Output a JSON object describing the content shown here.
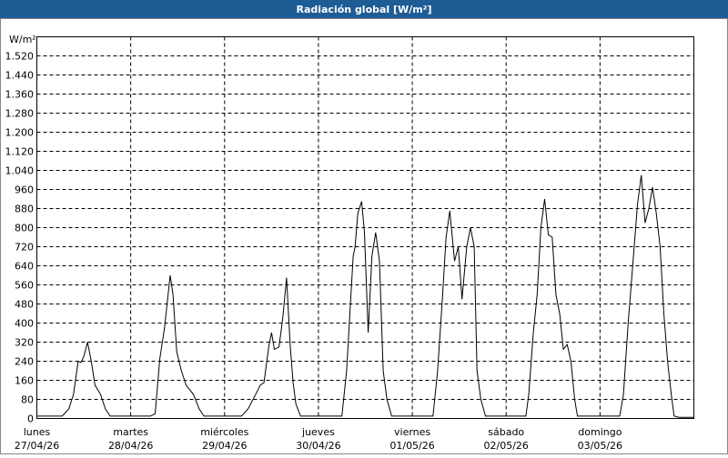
{
  "chart_data": {
    "type": "line",
    "title": "Radiación global [W/m²]",
    "y_unit": "W/m²",
    "xlim": [
      0,
      7
    ],
    "ylim": [
      0,
      1600
    ],
    "grid": true,
    "color": "#000000",
    "xticks": [
      {
        "value": 0,
        "label": "lunes",
        "date": "27/04/26"
      },
      {
        "value": 1,
        "label": "martes",
        "date": "28/04/26"
      },
      {
        "value": 2,
        "label": "miércoles",
        "date": "29/04/26"
      },
      {
        "value": 3,
        "label": "jueves",
        "date": "30/04/26"
      },
      {
        "value": 4,
        "label": "viernes",
        "date": "01/05/26"
      },
      {
        "value": 5,
        "label": "sábado",
        "date": "02/05/26"
      },
      {
        "value": 6,
        "label": "domingo",
        "date": "03/05/26"
      }
    ],
    "yticks": [
      0,
      80,
      160,
      240,
      320,
      400,
      480,
      560,
      640,
      720,
      800,
      880,
      960,
      {
        "value": 1040,
        "label": "1.040"
      },
      {
        "value": 1120,
        "label": "1.120"
      },
      {
        "value": 1200,
        "label": "1.200"
      },
      {
        "value": 1280,
        "label": "1.280"
      },
      {
        "value": 1360,
        "label": "1.360"
      },
      {
        "value": 1440,
        "label": "1.440"
      },
      {
        "value": 1520,
        "label": "1.520"
      }
    ],
    "x": [
      0,
      0.27,
      0.34,
      0.39,
      0.44,
      0.47,
      0.5,
      0.54,
      0.58,
      0.62,
      0.68,
      0.73,
      0.78,
      1.21,
      1.26,
      1.31,
      1.36,
      1.42,
      1.45,
      1.49,
      1.54,
      1.59,
      1.67,
      1.73,
      1.78,
      2.18,
      2.25,
      2.33,
      2.38,
      2.42,
      2.47,
      2.5,
      2.53,
      2.58,
      2.62,
      2.66,
      2.7,
      2.73,
      2.76,
      2.81,
      3.25,
      3.3,
      3.37,
      3.39,
      3.42,
      3.46,
      3.49,
      3.53,
      3.57,
      3.61,
      3.65,
      3.69,
      3.73,
      3.78,
      4.22,
      4.27,
      4.32,
      4.36,
      4.4,
      4.45,
      4.49,
      4.53,
      4.58,
      4.62,
      4.66,
      4.69,
      4.73,
      4.78,
      5.21,
      5.24,
      5.29,
      5.33,
      5.37,
      5.41,
      5.45,
      5.49,
      5.53,
      5.57,
      5.61,
      5.65,
      5.69,
      5.73,
      5.76,
      6.21,
      6.25,
      6.3,
      6.36,
      6.4,
      6.44,
      6.48,
      6.52,
      6.56,
      6.6,
      6.64,
      6.68,
      6.72,
      6.76,
      6.79,
      6.84,
      7
    ],
    "values": [
      10,
      10,
      40,
      100,
      240,
      235,
      260,
      320,
      240,
      140,
      100,
      40,
      10,
      10,
      20,
      250,
      380,
      600,
      520,
      280,
      200,
      140,
      100,
      40,
      10,
      10,
      40,
      100,
      140,
      150,
      300,
      360,
      290,
      300,
      420,
      590,
      300,
      150,
      60,
      10,
      10,
      200,
      680,
      720,
      860,
      910,
      780,
      360,
      680,
      780,
      660,
      200,
      80,
      10,
      10,
      200,
      500,
      760,
      870,
      660,
      720,
      500,
      720,
      800,
      720,
      200,
      80,
      10,
      10,
      100,
      360,
      520,
      800,
      920,
      770,
      760,
      520,
      440,
      290,
      310,
      240,
      80,
      10,
      10,
      100,
      400,
      700,
      900,
      1020,
      820,
      880,
      970,
      860,
      720,
      440,
      240,
      100,
      10,
      5,
      5
    ]
  }
}
